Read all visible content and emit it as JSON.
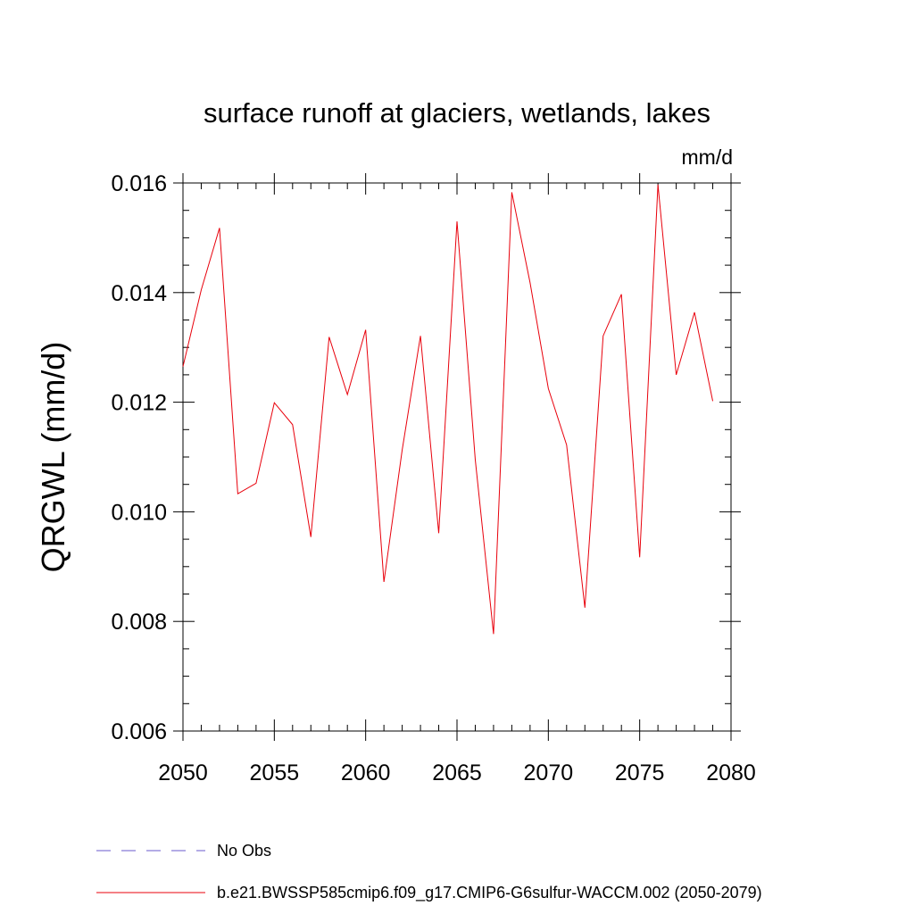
{
  "chart_data": {
    "type": "line",
    "title": "surface runoff at glaciers, wetlands, lakes",
    "units_label": "mm/d",
    "xlabel": "",
    "ylabel": "QRGWL  (mm/d)",
    "xlim": [
      2050,
      2080
    ],
    "ylim": [
      0.006,
      0.016
    ],
    "x_ticks": [
      2050,
      2055,
      2060,
      2065,
      2070,
      2075,
      2080
    ],
    "x_tick_labels": [
      "2050",
      "2055",
      "2060",
      "2065",
      "2070",
      "2075",
      "2080"
    ],
    "y_ticks": [
      0.006,
      0.008,
      0.01,
      0.012,
      0.014,
      0.016
    ],
    "y_tick_labels": [
      "0.006",
      "0.008",
      "0.010",
      "0.012",
      "0.014",
      "0.016"
    ],
    "grid": false,
    "legend_placement": "bottom",
    "legend": [
      {
        "label": "No Obs",
        "style": "dashed",
        "color": "#6a5acd"
      },
      {
        "label": "b.e21.BWSSP585cmip6.f09_g17.CMIP6-G6sulfur-WACCM.002 (2050-2079)",
        "style": "solid",
        "color": "#e8000b"
      }
    ],
    "series": [
      {
        "name": "b.e21.BWSSP585cmip6.f09_g17.CMIP6-G6sulfur-WACCM.002 (2050-2079)",
        "color": "#e8000b",
        "x": [
          2050,
          2051,
          2052,
          2053,
          2054,
          2055,
          2056,
          2057,
          2058,
          2059,
          2060,
          2061,
          2062,
          2063,
          2064,
          2065,
          2066,
          2067,
          2068,
          2069,
          2070,
          2071,
          2072,
          2073,
          2074,
          2075,
          2076,
          2077,
          2078,
          2079
        ],
        "values": [
          0.01265,
          0.01405,
          0.01518,
          0.01033,
          0.01052,
          0.01199,
          0.01159,
          0.00954,
          0.01319,
          0.01214,
          0.01332,
          0.00872,
          0.01113,
          0.01321,
          0.00961,
          0.0153,
          0.01095,
          0.00777,
          0.01583,
          0.01418,
          0.01225,
          0.01122,
          0.00825,
          0.01321,
          0.01397,
          0.00917,
          0.01597,
          0.0125,
          0.01364,
          0.01202
        ]
      }
    ]
  }
}
